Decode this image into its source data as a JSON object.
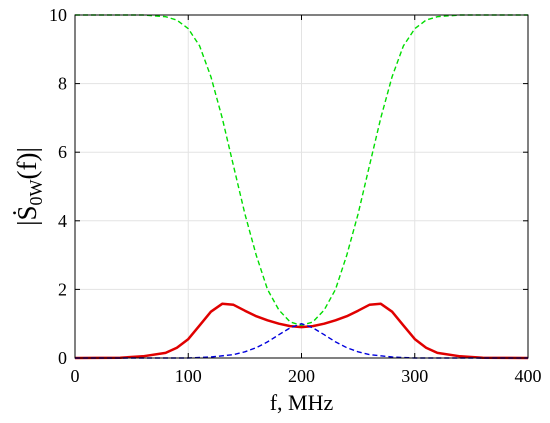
{
  "chart_data": {
    "type": "line",
    "xlabel": "f, MHz",
    "ylabel": "|Ṡ0W(f)|",
    "xlim": [
      0,
      400
    ],
    "ylim": [
      0,
      10
    ],
    "xticks": [
      0,
      100,
      200,
      300,
      400
    ],
    "yticks": [
      0,
      2,
      4,
      6,
      8,
      10
    ],
    "xtick_labels": [
      "0",
      "100",
      "200",
      "300",
      "400"
    ],
    "ytick_labels": [
      "0",
      "2",
      "4",
      "6",
      "8",
      "10"
    ],
    "grid": true,
    "series": [
      {
        "color": "#00dd00",
        "style": "dashed",
        "x": [
          0,
          40,
          60,
          80,
          90,
          100,
          110,
          120,
          130,
          140,
          150,
          160,
          170,
          180,
          190,
          200,
          210,
          220,
          230,
          240,
          250,
          260,
          270,
          280,
          290,
          300,
          310,
          320,
          340,
          360,
          400
        ],
        "y": [
          10,
          10,
          10,
          9.95,
          9.85,
          9.6,
          9.1,
          8.2,
          7.0,
          5.6,
          4.2,
          3.0,
          2.0,
          1.4,
          1.05,
          0.95,
          1.05,
          1.4,
          2.0,
          3.0,
          4.2,
          5.6,
          7.0,
          8.2,
          9.1,
          9.6,
          9.85,
          9.95,
          10,
          10,
          10
        ]
      },
      {
        "color": "#e00000",
        "style": "solid",
        "x": [
          0,
          40,
          60,
          80,
          90,
          100,
          110,
          120,
          130,
          140,
          150,
          160,
          170,
          180,
          190,
          200,
          210,
          220,
          230,
          240,
          250,
          260,
          270,
          280,
          290,
          300,
          310,
          320,
          340,
          360,
          400
        ],
        "y": [
          0.0,
          0.01,
          0.05,
          0.15,
          0.3,
          0.55,
          0.95,
          1.35,
          1.58,
          1.55,
          1.38,
          1.22,
          1.1,
          1.0,
          0.93,
          0.9,
          0.93,
          1.0,
          1.1,
          1.22,
          1.38,
          1.55,
          1.58,
          1.35,
          0.95,
          0.55,
          0.3,
          0.15,
          0.05,
          0.01,
          0.0
        ]
      },
      {
        "color": "#0000dd",
        "style": "dashed",
        "x": [
          0,
          100,
          120,
          140,
          150,
          160,
          170,
          180,
          190,
          200,
          210,
          220,
          230,
          240,
          250,
          260,
          280,
          300,
          400
        ],
        "y": [
          0,
          0,
          0.03,
          0.1,
          0.18,
          0.3,
          0.47,
          0.68,
          0.88,
          1.0,
          0.88,
          0.68,
          0.47,
          0.3,
          0.18,
          0.1,
          0.03,
          0,
          0
        ]
      }
    ]
  }
}
